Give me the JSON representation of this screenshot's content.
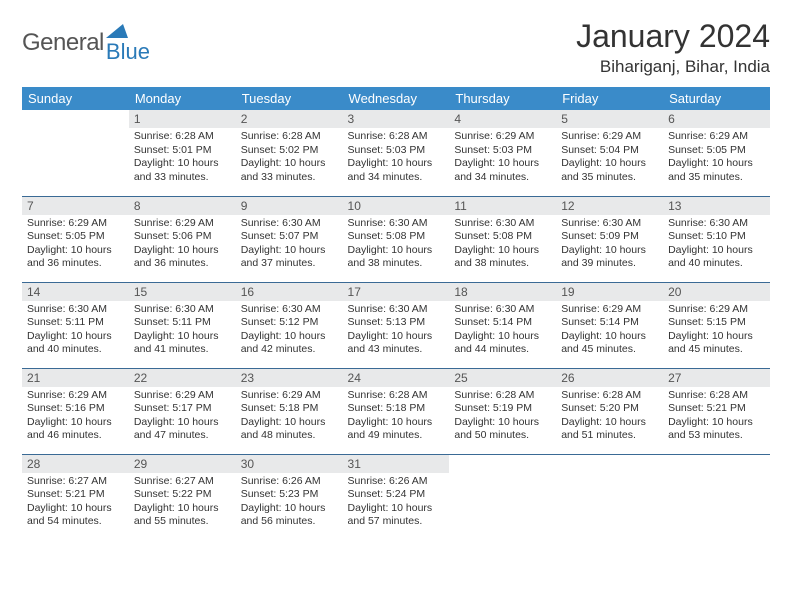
{
  "brand": {
    "general": "General",
    "blue": "Blue"
  },
  "title": "January 2024",
  "location": "Bihariganj, Bihar, India",
  "colors": {
    "header_bg": "#3a8bc9",
    "header_text": "#ffffff",
    "daynum_bg": "#e8e9ea",
    "row_border": "#3a6a95",
    "brand_blue": "#2a7ab8"
  },
  "weekdays": [
    "Sunday",
    "Monday",
    "Tuesday",
    "Wednesday",
    "Thursday",
    "Friday",
    "Saturday"
  ],
  "weeks": [
    [
      null,
      {
        "n": "1",
        "sr": "Sunrise: 6:28 AM",
        "ss": "Sunset: 5:01 PM",
        "dl": "Daylight: 10 hours and 33 minutes."
      },
      {
        "n": "2",
        "sr": "Sunrise: 6:28 AM",
        "ss": "Sunset: 5:02 PM",
        "dl": "Daylight: 10 hours and 33 minutes."
      },
      {
        "n": "3",
        "sr": "Sunrise: 6:28 AM",
        "ss": "Sunset: 5:03 PM",
        "dl": "Daylight: 10 hours and 34 minutes."
      },
      {
        "n": "4",
        "sr": "Sunrise: 6:29 AM",
        "ss": "Sunset: 5:03 PM",
        "dl": "Daylight: 10 hours and 34 minutes."
      },
      {
        "n": "5",
        "sr": "Sunrise: 6:29 AM",
        "ss": "Sunset: 5:04 PM",
        "dl": "Daylight: 10 hours and 35 minutes."
      },
      {
        "n": "6",
        "sr": "Sunrise: 6:29 AM",
        "ss": "Sunset: 5:05 PM",
        "dl": "Daylight: 10 hours and 35 minutes."
      }
    ],
    [
      {
        "n": "7",
        "sr": "Sunrise: 6:29 AM",
        "ss": "Sunset: 5:05 PM",
        "dl": "Daylight: 10 hours and 36 minutes."
      },
      {
        "n": "8",
        "sr": "Sunrise: 6:29 AM",
        "ss": "Sunset: 5:06 PM",
        "dl": "Daylight: 10 hours and 36 minutes."
      },
      {
        "n": "9",
        "sr": "Sunrise: 6:30 AM",
        "ss": "Sunset: 5:07 PM",
        "dl": "Daylight: 10 hours and 37 minutes."
      },
      {
        "n": "10",
        "sr": "Sunrise: 6:30 AM",
        "ss": "Sunset: 5:08 PM",
        "dl": "Daylight: 10 hours and 38 minutes."
      },
      {
        "n": "11",
        "sr": "Sunrise: 6:30 AM",
        "ss": "Sunset: 5:08 PM",
        "dl": "Daylight: 10 hours and 38 minutes."
      },
      {
        "n": "12",
        "sr": "Sunrise: 6:30 AM",
        "ss": "Sunset: 5:09 PM",
        "dl": "Daylight: 10 hours and 39 minutes."
      },
      {
        "n": "13",
        "sr": "Sunrise: 6:30 AM",
        "ss": "Sunset: 5:10 PM",
        "dl": "Daylight: 10 hours and 40 minutes."
      }
    ],
    [
      {
        "n": "14",
        "sr": "Sunrise: 6:30 AM",
        "ss": "Sunset: 5:11 PM",
        "dl": "Daylight: 10 hours and 40 minutes."
      },
      {
        "n": "15",
        "sr": "Sunrise: 6:30 AM",
        "ss": "Sunset: 5:11 PM",
        "dl": "Daylight: 10 hours and 41 minutes."
      },
      {
        "n": "16",
        "sr": "Sunrise: 6:30 AM",
        "ss": "Sunset: 5:12 PM",
        "dl": "Daylight: 10 hours and 42 minutes."
      },
      {
        "n": "17",
        "sr": "Sunrise: 6:30 AM",
        "ss": "Sunset: 5:13 PM",
        "dl": "Daylight: 10 hours and 43 minutes."
      },
      {
        "n": "18",
        "sr": "Sunrise: 6:30 AM",
        "ss": "Sunset: 5:14 PM",
        "dl": "Daylight: 10 hours and 44 minutes."
      },
      {
        "n": "19",
        "sr": "Sunrise: 6:29 AM",
        "ss": "Sunset: 5:14 PM",
        "dl": "Daylight: 10 hours and 45 minutes."
      },
      {
        "n": "20",
        "sr": "Sunrise: 6:29 AM",
        "ss": "Sunset: 5:15 PM",
        "dl": "Daylight: 10 hours and 45 minutes."
      }
    ],
    [
      {
        "n": "21",
        "sr": "Sunrise: 6:29 AM",
        "ss": "Sunset: 5:16 PM",
        "dl": "Daylight: 10 hours and 46 minutes."
      },
      {
        "n": "22",
        "sr": "Sunrise: 6:29 AM",
        "ss": "Sunset: 5:17 PM",
        "dl": "Daylight: 10 hours and 47 minutes."
      },
      {
        "n": "23",
        "sr": "Sunrise: 6:29 AM",
        "ss": "Sunset: 5:18 PM",
        "dl": "Daylight: 10 hours and 48 minutes."
      },
      {
        "n": "24",
        "sr": "Sunrise: 6:28 AM",
        "ss": "Sunset: 5:18 PM",
        "dl": "Daylight: 10 hours and 49 minutes."
      },
      {
        "n": "25",
        "sr": "Sunrise: 6:28 AM",
        "ss": "Sunset: 5:19 PM",
        "dl": "Daylight: 10 hours and 50 minutes."
      },
      {
        "n": "26",
        "sr": "Sunrise: 6:28 AM",
        "ss": "Sunset: 5:20 PM",
        "dl": "Daylight: 10 hours and 51 minutes."
      },
      {
        "n": "27",
        "sr": "Sunrise: 6:28 AM",
        "ss": "Sunset: 5:21 PM",
        "dl": "Daylight: 10 hours and 53 minutes."
      }
    ],
    [
      {
        "n": "28",
        "sr": "Sunrise: 6:27 AM",
        "ss": "Sunset: 5:21 PM",
        "dl": "Daylight: 10 hours and 54 minutes."
      },
      {
        "n": "29",
        "sr": "Sunrise: 6:27 AM",
        "ss": "Sunset: 5:22 PM",
        "dl": "Daylight: 10 hours and 55 minutes."
      },
      {
        "n": "30",
        "sr": "Sunrise: 6:26 AM",
        "ss": "Sunset: 5:23 PM",
        "dl": "Daylight: 10 hours and 56 minutes."
      },
      {
        "n": "31",
        "sr": "Sunrise: 6:26 AM",
        "ss": "Sunset: 5:24 PM",
        "dl": "Daylight: 10 hours and 57 minutes."
      },
      null,
      null,
      null
    ]
  ]
}
